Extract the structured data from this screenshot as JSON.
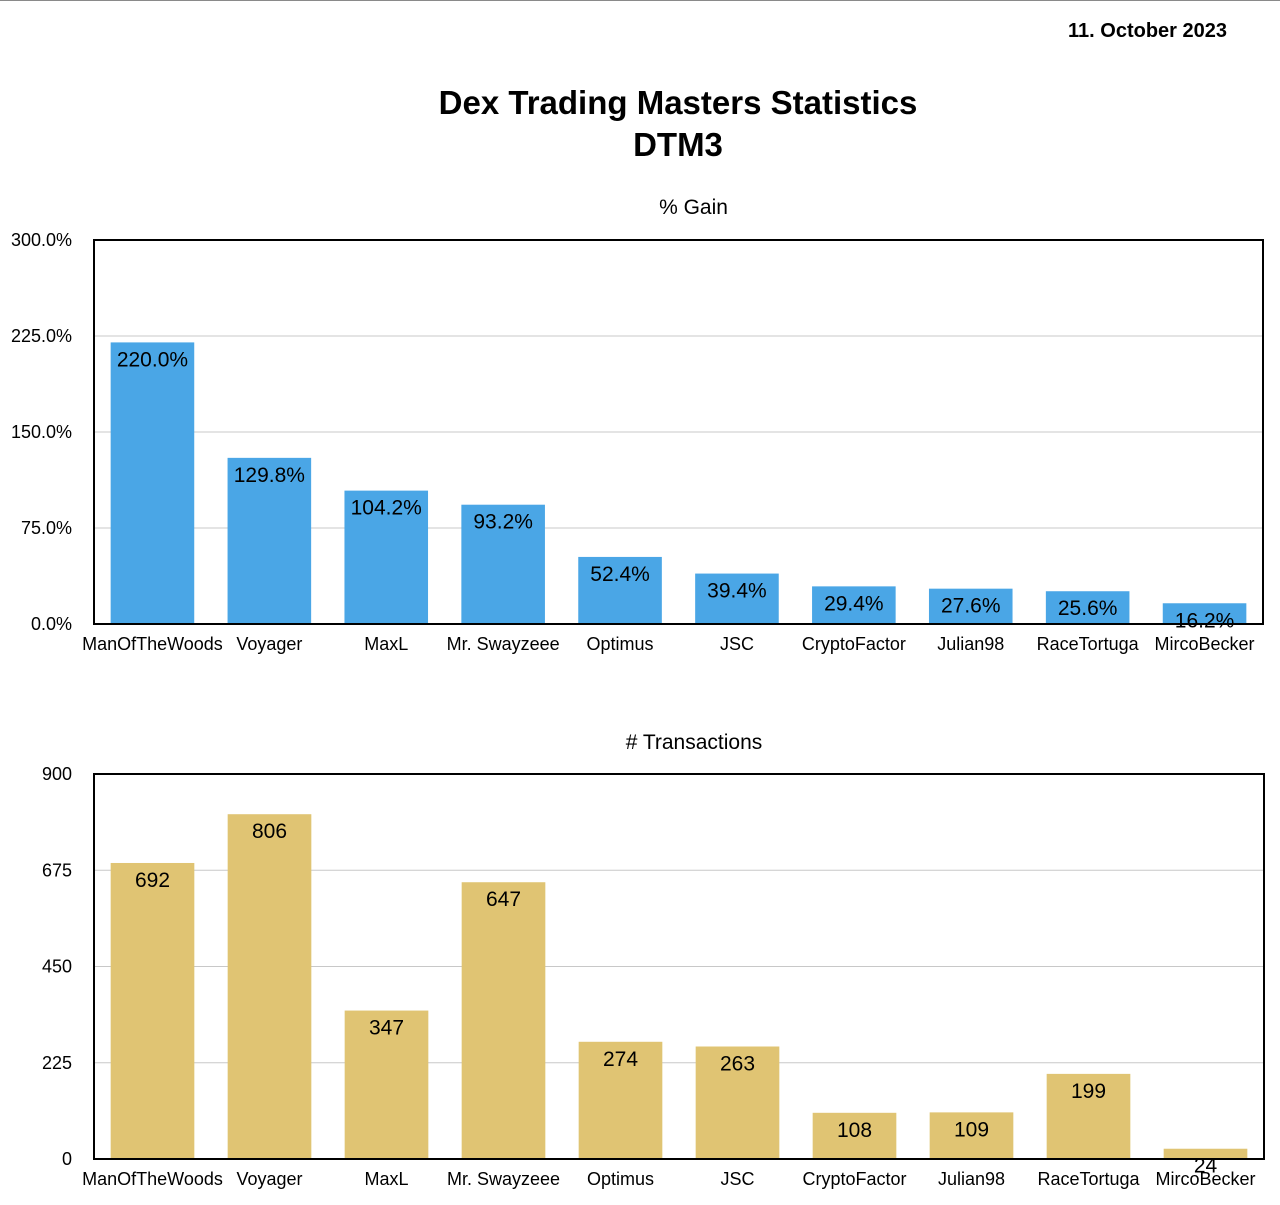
{
  "header": {
    "date": "11. October 2023",
    "title": "Dex Trading Masters Statistics",
    "subtitle": "DTM3"
  },
  "chart_data": [
    {
      "type": "bar",
      "title": "% Gain",
      "categories": [
        "ManOfTheWoods",
        "Voyager",
        "MaxL",
        "Mr. Swayzeee",
        "Optimus",
        "JSC",
        "CryptoFactor",
        "Julian98",
        "RaceTortuga",
        "MircoBecker"
      ],
      "values": [
        220.0,
        129.8,
        104.2,
        93.2,
        52.4,
        39.4,
        29.4,
        27.6,
        25.6,
        16.2
      ],
      "value_labels": [
        "220.0%",
        "129.8%",
        "104.2%",
        "93.2%",
        "52.4%",
        "39.4%",
        "29.4%",
        "27.6%",
        "25.6%",
        "16.2%"
      ],
      "yticks": [
        0,
        75,
        150,
        225,
        300
      ],
      "ytick_labels": [
        "0.0%",
        "75.0%",
        "150.0%",
        "225.0%",
        "300.0%"
      ],
      "ylim": [
        0,
        300
      ],
      "grid": true,
      "color": "#4aa6e6"
    },
    {
      "type": "bar",
      "title": "# Transactions",
      "categories": [
        "ManOfTheWoods",
        "Voyager",
        "MaxL",
        "Mr. Swayzeee",
        "Optimus",
        "JSC",
        "CryptoFactor",
        "Julian98",
        "RaceTortuga",
        "MircoBecker"
      ],
      "values": [
        692,
        806,
        347,
        647,
        274,
        263,
        108,
        109,
        199,
        24
      ],
      "value_labels": [
        "692",
        "806",
        "347",
        "647",
        "274",
        "263",
        "108",
        "109",
        "199",
        "24"
      ],
      "yticks": [
        0,
        225,
        450,
        675,
        900
      ],
      "ytick_labels": [
        "0",
        "225",
        "450",
        "675",
        "900"
      ],
      "ylim": [
        0,
        900
      ],
      "grid": true,
      "color": "#e0c473"
    }
  ]
}
